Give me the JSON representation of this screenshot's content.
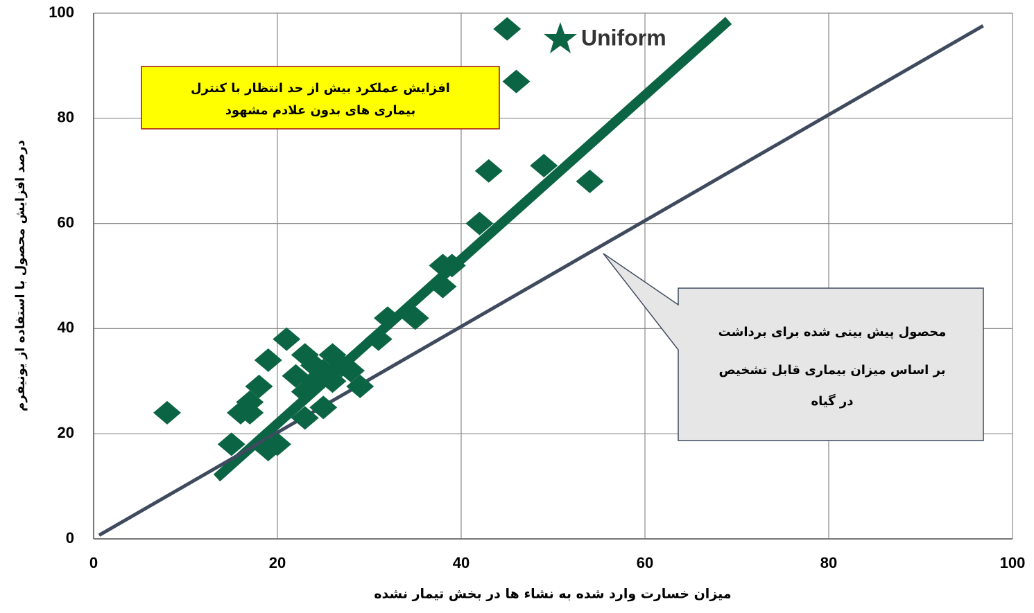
{
  "chart_data": {
    "type": "scatter",
    "xlabel": "میزان خسارت وارد شده به نشاء ها در بخش تیمار نشده",
    "ylabel": "درصد افزایش محصول با استفاده از یونیفرم",
    "logo": "Uniform",
    "xlim": [
      0,
      100
    ],
    "ylim": [
      0,
      100
    ],
    "xticks": [
      0,
      20,
      40,
      60,
      80,
      100
    ],
    "yticks": [
      0,
      20,
      40,
      60,
      80,
      100
    ],
    "grid": true,
    "points": {
      "color": "#0b6443",
      "x": [
        8,
        15,
        16,
        17,
        17,
        18,
        19,
        19,
        20,
        21,
        22,
        23,
        23,
        23,
        24,
        24,
        25,
        25,
        26,
        26,
        27,
        28,
        29,
        31,
        32,
        35,
        38,
        38,
        39,
        42,
        43,
        45,
        46,
        49,
        54
      ],
      "y": [
        24,
        18,
        24,
        24,
        26,
        29,
        34,
        17,
        18,
        38,
        31,
        35,
        28,
        23,
        33,
        30,
        25,
        32,
        35,
        30,
        33,
        32,
        29,
        38,
        42,
        42,
        48,
        52,
        52,
        60,
        70,
        97,
        87,
        71,
        68
      ]
    },
    "lines": [
      {
        "color": "#0b6443",
        "x": [
          13.4,
          69.1
        ],
        "values": [
          11.6,
          98.6
        ]
      },
      {
        "color": "#3f4a5e",
        "x": [
          0.6,
          96.8
        ],
        "values": [
          0.7,
          97.6
        ]
      }
    ],
    "annotations": [
      {
        "lines": [
          "افزایش عملکرد بیش از حد انتظار با کنترل",
          "بیماری های بدون علادم مشهود"
        ]
      },
      {
        "lines": [
          "محصول پیش بینی شده برای برداشت",
          "بر اساس میزان بیماری قابل تشخیص",
          "در گیاه"
        ]
      }
    ]
  }
}
